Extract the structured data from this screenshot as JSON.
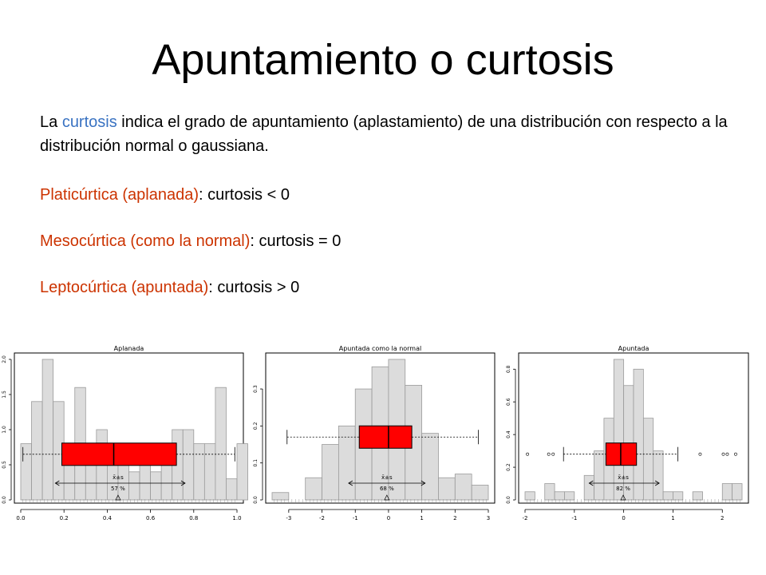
{
  "slide": {
    "title": "Apuntamiento o curtosis",
    "intro": {
      "prefix": "La ",
      "term": "curtosis",
      "rest": " indica el grado de apuntamiento (aplastamiento) de una distribución con respecto a la distribución normal o gaussiana."
    },
    "types": [
      {
        "name": "Platicúrtica (aplanada)",
        "rule": ": curtosis < 0"
      },
      {
        "name": "Mesocúrtica (como la normal)",
        "rule": ": curtosis = 0"
      },
      {
        "name": "Leptocúrtica (apuntada)",
        "rule": ": curtosis > 0"
      }
    ],
    "colors": {
      "term": "#3a73c2",
      "type_name": "#cc3300",
      "box": "#ff0000",
      "bar": "#dcdcdc"
    }
  },
  "chart_data": [
    {
      "type": "bar",
      "title": "Aplanada",
      "bin_start": 0.0,
      "bin_width": 0.05,
      "values": [
        0.8,
        1.4,
        2.0,
        1.4,
        0.6,
        1.6,
        0.6,
        1.0,
        0.6,
        0.8,
        0.4,
        0.6,
        0.4,
        0.6,
        1.0,
        1.0,
        0.8,
        0.8,
        1.6,
        0.3,
        0.8
      ],
      "xlim": [
        0.0,
        1.0
      ],
      "ylim": [
        0.0,
        2.0
      ],
      "xticks": [
        "0.0",
        "0.2",
        "0.4",
        "0.6",
        "0.8",
        "1.0"
      ],
      "yticks": [
        "0.0",
        "0.5",
        "1.0",
        "1.5",
        "2.0"
      ],
      "box": {
        "whisker_low": 0.01,
        "q1": 0.19,
        "median": 0.43,
        "q3": 0.72,
        "whisker_high": 0.99,
        "level": 0.65,
        "outliers": []
      },
      "mean_sd": {
        "low": 0.16,
        "high": 0.76,
        "label": "x̄±s",
        "pct": "57 %"
      },
      "mean": 0.45
    },
    {
      "type": "bar",
      "title": "Apuntada como la normal",
      "bin_start": -3.5,
      "bin_width": 0.5,
      "values": [
        0.02,
        0.0,
        0.06,
        0.15,
        0.2,
        0.3,
        0.36,
        0.38,
        0.31,
        0.18,
        0.06,
        0.07,
        0.04
      ],
      "xlim": [
        -3.5,
        3.0
      ],
      "ylim": [
        0.0,
        0.38
      ],
      "xticks": [
        "-3",
        "-2",
        "-1",
        "0",
        "1",
        "2",
        "3"
      ],
      "yticks": [
        "0.0",
        "0.1",
        "0.2",
        "0.3"
      ],
      "box": {
        "whisker_low": -3.05,
        "q1": -0.88,
        "median": 0.0,
        "q3": 0.7,
        "whisker_high": 2.7,
        "level": 0.17,
        "outliers": []
      },
      "mean_sd": {
        "low": -1.2,
        "high": 1.1,
        "label": "x̄±s",
        "pct": "68 %"
      },
      "mean": -0.05
    },
    {
      "type": "bar",
      "title": "Apuntada",
      "bin_start": -2.0,
      "bin_width": 0.2,
      "values": [
        0.05,
        0.0,
        0.1,
        0.05,
        0.05,
        0.0,
        0.15,
        0.3,
        0.5,
        0.86,
        0.7,
        0.8,
        0.5,
        0.3,
        0.05,
        0.05,
        0.0,
        0.05,
        0.0,
        0.0,
        0.1,
        0.1
      ],
      "xlim": [
        -2.0,
        2.4
      ],
      "ylim": [
        0.0,
        0.86
      ],
      "xticks": [
        "-2",
        "-1",
        "0",
        "1",
        "2"
      ],
      "yticks": [
        "0.0",
        "0.2",
        "0.4",
        "0.6",
        "0.8"
      ],
      "box": {
        "whisker_low": -1.22,
        "q1": -0.36,
        "median": -0.06,
        "q3": 0.26,
        "whisker_high": 1.1,
        "level": 0.28,
        "outliers": [
          -1.95,
          -1.52,
          -1.43,
          1.55,
          2.02,
          2.1,
          2.27
        ]
      },
      "mean_sd": {
        "low": -0.7,
        "high": 0.72,
        "label": "x̄±s",
        "pct": "82 %"
      },
      "mean": -0.01
    }
  ]
}
